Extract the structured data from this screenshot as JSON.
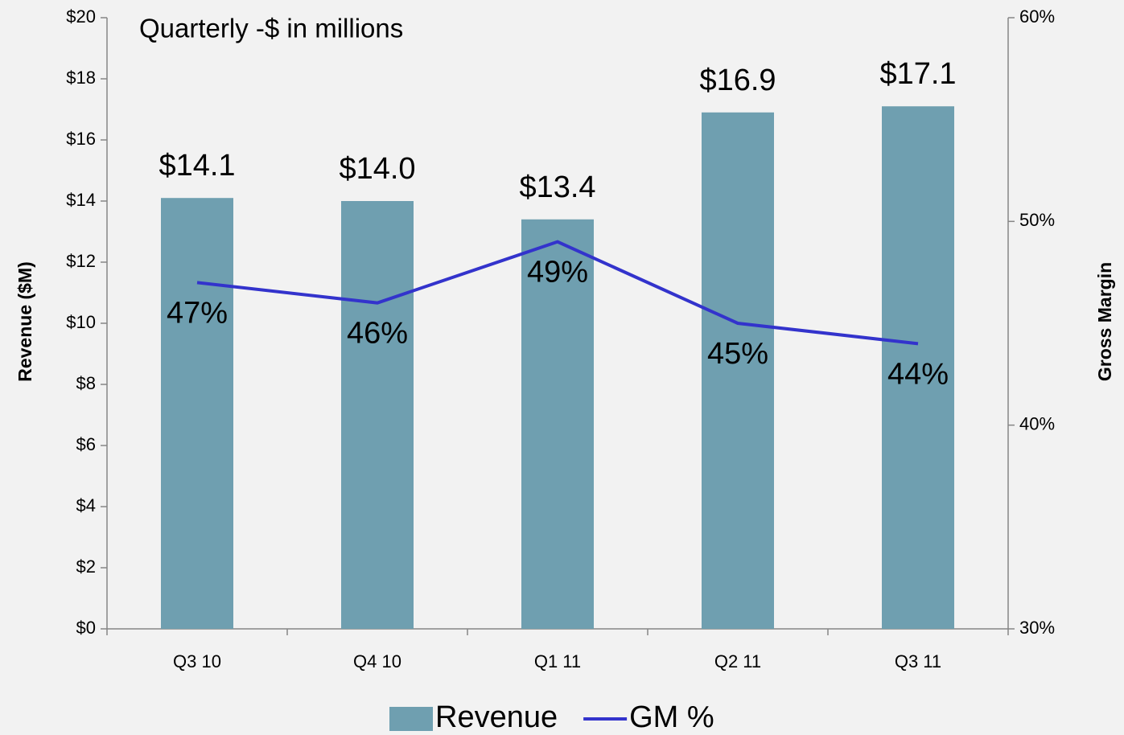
{
  "chart_data": {
    "type": "bar_line",
    "title": "Quarterly -$ in millions",
    "y_label": "Revenue ($M)",
    "y2_label": "Gross Margin",
    "categories": [
      "Q3 10",
      "Q4 10",
      "Q1 11",
      "Q2 11",
      "Q3 11"
    ],
    "series": [
      {
        "name": "Revenue",
        "type": "bar",
        "color": "#6f9fb0",
        "values": [
          14.1,
          14.0,
          13.4,
          16.9,
          17.1
        ],
        "value_labels": [
          "$14.1",
          "$14.0",
          "$13.4",
          "$16.9",
          "$17.1"
        ]
      },
      {
        "name": "GM %",
        "type": "line",
        "axis": "y2",
        "color": "#3333cc",
        "values": [
          47,
          46,
          49,
          45,
          44
        ],
        "value_labels": [
          "47%",
          "46%",
          "49%",
          "45%",
          "44%"
        ]
      }
    ],
    "ylim": [
      0,
      20
    ],
    "yticks": [
      {
        "value": 0,
        "label": "$0"
      },
      {
        "value": 2,
        "label": "$2"
      },
      {
        "value": 4,
        "label": "$4"
      },
      {
        "value": 6,
        "label": "$6"
      },
      {
        "value": 8,
        "label": "$8"
      },
      {
        "value": 10,
        "label": "$10"
      },
      {
        "value": 12,
        "label": "$12"
      },
      {
        "value": 14,
        "label": "$14"
      },
      {
        "value": 16,
        "label": "$16"
      },
      {
        "value": 18,
        "label": "$18"
      },
      {
        "value": 20,
        "label": "$20"
      }
    ],
    "y2lim": [
      30,
      60
    ],
    "y2ticks": [
      {
        "value": 30,
        "label": "30%"
      },
      {
        "value": 40,
        "label": "40%"
      },
      {
        "value": 50,
        "label": "50%"
      },
      {
        "value": 60,
        "label": "60%"
      }
    ],
    "legend": "bottom"
  }
}
